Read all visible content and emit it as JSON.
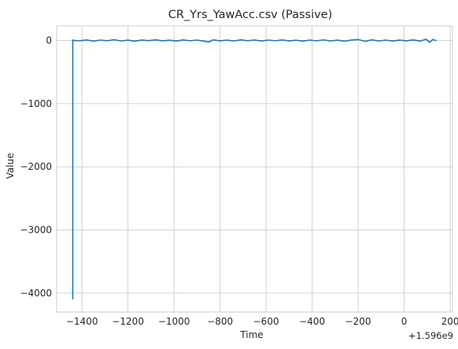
{
  "chart_data": {
    "type": "line",
    "title": "CR_Yrs_YawAcc.csv (Passive)",
    "xlabel": "Time",
    "ylabel": "Value",
    "x_offset_label": "+1.596e9",
    "xlim": [
      -1510,
      210
    ],
    "ylim": [
      -4300,
      230
    ],
    "xticks": [
      -1400,
      -1200,
      -1000,
      -800,
      -600,
      -400,
      -200,
      0,
      200
    ],
    "yticks": [
      0,
      -1000,
      -2000,
      -3000,
      -4000
    ],
    "xtick_labels": [
      "−1400",
      "−1200",
      "−1000",
      "−800",
      "−600",
      "−400",
      "−200",
      "0",
      "200"
    ],
    "ytick_labels": [
      "0",
      "−1000",
      "−2000",
      "−3000",
      "−4000"
    ],
    "grid": true,
    "line_color": "#1f77b4",
    "series": [
      {
        "x": [
          -1440,
          -1440,
          -1438,
          -1410,
          -1380,
          -1350,
          -1320,
          -1290,
          -1260,
          -1230,
          -1200,
          -1170,
          -1140,
          -1110,
          -1080,
          -1050,
          -1020,
          -990,
          -960,
          -930,
          -900,
          -870,
          -850,
          -830,
          -800,
          -770,
          -740,
          -710,
          -680,
          -650,
          -620,
          -590,
          -560,
          -530,
          -500,
          -470,
          -440,
          -410,
          -380,
          -350,
          -320,
          -290,
          -260,
          -230,
          -200,
          -170,
          -140,
          -110,
          -80,
          -50,
          -20,
          10,
          40,
          70,
          95,
          110,
          125,
          140
        ],
        "y": [
          -4100,
          10,
          0,
          -5,
          8,
          -10,
          6,
          -4,
          12,
          -8,
          5,
          -12,
          7,
          -3,
          10,
          -6,
          4,
          -9,
          8,
          -5,
          6,
          -10,
          -25,
          9,
          -6,
          5,
          -8,
          10,
          -4,
          7,
          -9,
          6,
          -5,
          8,
          -7,
          4,
          -10,
          6,
          -5,
          9,
          -8,
          5,
          -12,
          7,
          15,
          -14,
          10,
          -8,
          6,
          -9,
          5,
          -6,
          8,
          -10,
          20,
          -30,
          15,
          -5
        ]
      }
    ]
  }
}
